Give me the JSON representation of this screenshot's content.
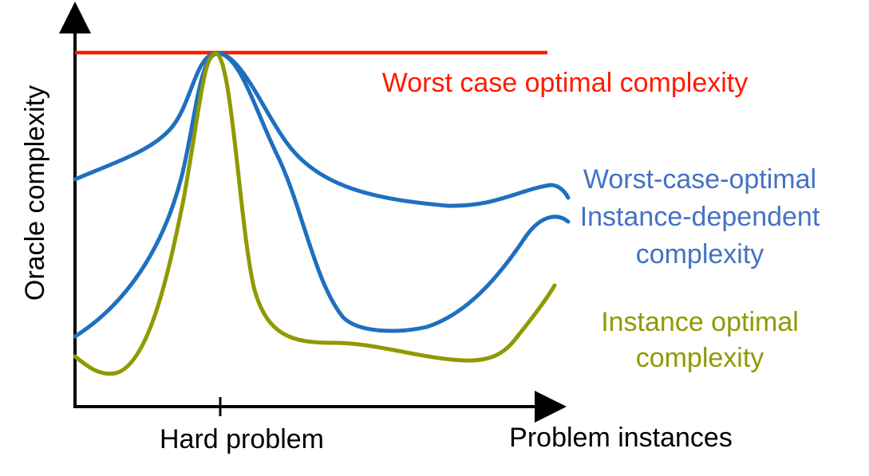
{
  "axes": {
    "y_label": "Oracle complexity",
    "x_tick_label": "Hard problem",
    "x_label": "Problem instances"
  },
  "curves": {
    "worst_case": {
      "label": "Worst case optimal complexity",
      "color": "#ff1a00"
    },
    "instance_dependent": {
      "label_lines": [
        "Worst-case-optimal",
        "Instance-dependent",
        "complexity"
      ],
      "color": "#1f6fbf",
      "label_color": "#4472c4"
    },
    "instance_optimal": {
      "label_lines": [
        "Instance optimal",
        "complexity"
      ],
      "color": "#8f9a00"
    }
  }
}
